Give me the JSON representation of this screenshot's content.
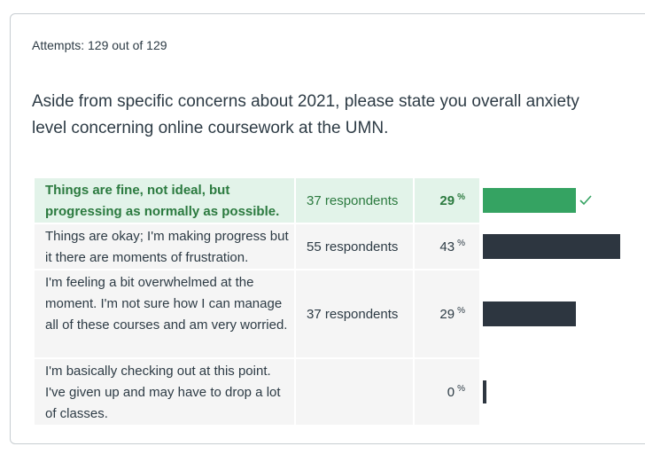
{
  "attempts": "Attempts: 129 out of 129",
  "question": "Aside from specific concerns about 2021, please state you overall anxiety level concerning online coursework at the UMN.",
  "percent_sign": "%",
  "colors": {
    "correct_bg": "#e2f3e9",
    "correct_text": "#2b7a3f",
    "correct_bar": "#35a362",
    "bar": "#2d3640"
  },
  "answers": [
    {
      "text": "Things are fine, not ideal, but progressing as normally as possible.",
      "respondents": "37 respondents",
      "percent": "29",
      "fraction": 0.29,
      "correct": true,
      "icon": "check-icon"
    },
    {
      "text": "Things are okay; I'm making progress but it there are moments of frustration.",
      "respondents": "55 respondents",
      "percent": "43",
      "fraction": 0.43,
      "correct": false
    },
    {
      "text": "I'm feeling a bit overwhelmed at the moment. I'm not sure how I can manage all of these courses and am very worried.",
      "respondents": "37 respondents",
      "percent": "29",
      "fraction": 0.29,
      "correct": false
    },
    {
      "text": "I'm basically checking out at this point. I've given up and may have to drop a lot of classes.",
      "respondents": "",
      "percent": "0",
      "fraction": 0,
      "correct": false
    }
  ]
}
